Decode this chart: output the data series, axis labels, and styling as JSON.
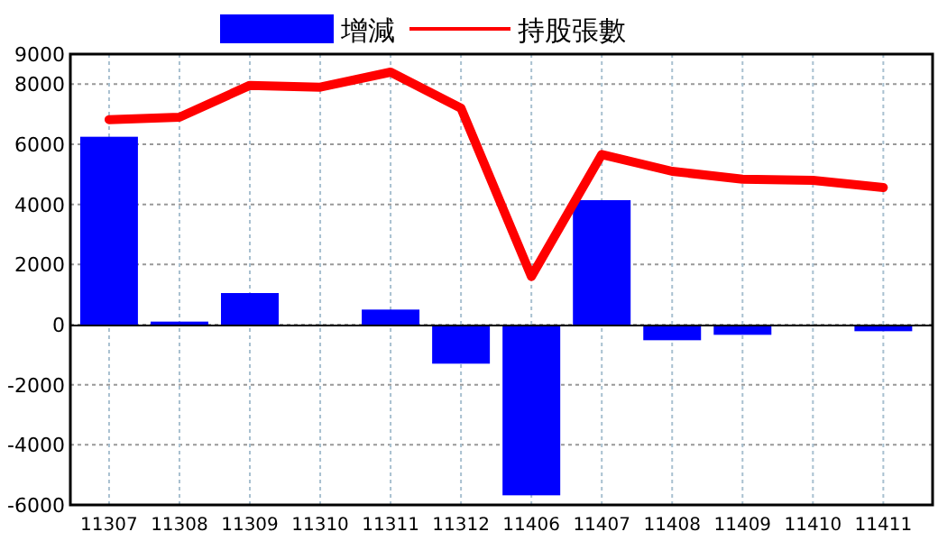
{
  "chart_data": {
    "type": "bar",
    "categories": [
      "11307",
      "11308",
      "11309",
      "11310",
      "11311",
      "11312",
      "11406",
      "11407",
      "11408",
      "11409",
      "11410",
      "11411"
    ],
    "series": [
      {
        "name": "增減",
        "color": "#0000ff",
        "values": [
          6250,
          100,
          1050,
          0,
          500,
          -1300,
          -5680,
          4140,
          -520,
          -340,
          0,
          -220
        ]
      },
      {
        "name": "持股張數",
        "type": "line",
        "color": "#ff0000",
        "values": [
          6820,
          6900,
          7960,
          7900,
          8400,
          7200,
          1600,
          5660,
          5100,
          4840,
          4800,
          4560
        ]
      }
    ],
    "ylim": [
      -6000,
      9000
    ],
    "yticks": [
      -6000,
      -4000,
      -2000,
      0,
      2000,
      4000,
      6000,
      8000,
      9000
    ],
    "grid": true,
    "legend": "top"
  }
}
